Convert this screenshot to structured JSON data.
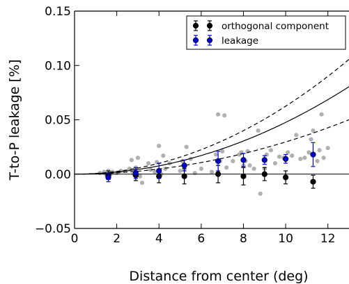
{
  "chart_data": {
    "type": "scatter",
    "xlabel": "Distance from center (deg)",
    "ylabel": "T-to-P leakage [%]",
    "xlim": [
      0,
      13
    ],
    "ylim": [
      -0.05,
      0.15
    ],
    "xticks": [
      0,
      2,
      4,
      6,
      8,
      10,
      12
    ],
    "yticks": [
      -0.05,
      0.0,
      0.05,
      0.1,
      0.15
    ],
    "xtick_labels": [
      "0",
      "2",
      "4",
      "6",
      "8",
      "10",
      "12"
    ],
    "ytick_labels": [
      "−0.05",
      "0.00",
      "0.05",
      "0.10",
      "0.15"
    ],
    "legend": {
      "placement": "top-right"
    },
    "series": [
      {
        "name": "orthogonal component",
        "color": "#000000",
        "x": [
          1.6,
          2.9,
          4.0,
          5.2,
          6.8,
          8.0,
          9.0,
          10.0,
          11.3
        ],
        "y": [
          -0.001,
          -0.001,
          -0.002,
          -0.002,
          0.0,
          -0.002,
          0.0,
          -0.003,
          -0.007
        ],
        "yerr": [
          0.004,
          0.005,
          0.006,
          0.007,
          0.008,
          0.008,
          0.006,
          0.006,
          0.006
        ]
      },
      {
        "name": "leakage",
        "color": "#0000cc",
        "x": [
          1.6,
          2.9,
          4.0,
          5.2,
          6.8,
          8.0,
          9.0,
          10.0,
          11.3
        ],
        "y": [
          -0.003,
          0.001,
          0.003,
          0.008,
          0.012,
          0.013,
          0.013,
          0.014,
          0.018
        ],
        "yerr": [
          0.004,
          0.005,
          0.007,
          0.005,
          0.009,
          0.006,
          0.004,
          0.004,
          0.011
        ]
      }
    ],
    "scatter_points": {
      "color": "#b0b0b0",
      "x": [
        1.2,
        1.4,
        1.5,
        1.6,
        1.7,
        1.8,
        2.0,
        2.2,
        2.6,
        2.7,
        2.8,
        2.9,
        3.0,
        3.1,
        3.2,
        3.5,
        3.6,
        3.8,
        3.9,
        4.0,
        4.1,
        4.2,
        4.3,
        4.5,
        5.0,
        5.1,
        5.2,
        5.3,
        5.5,
        5.7,
        6.0,
        6.5,
        6.7,
        6.8,
        6.9,
        7.0,
        7.1,
        7.2,
        7.5,
        7.8,
        7.9,
        8.0,
        8.1,
        8.2,
        8.3,
        8.5,
        8.7,
        8.8,
        9.0,
        9.1,
        9.3,
        9.5,
        9.7,
        9.9,
        10.0,
        10.1,
        10.3,
        10.5,
        10.7,
        10.9,
        11.1,
        11.2,
        11.3,
        11.5,
        11.6,
        11.7,
        11.8,
        12.0
      ],
      "y": [
        0.001,
        0.002,
        -0.001,
        0.003,
        0.0,
        0.002,
        0.001,
        0.003,
        0.005,
        0.013,
        0.0,
        0.006,
        0.015,
        -0.002,
        -0.008,
        0.01,
        0.004,
        0.002,
        0.011,
        0.026,
        0.0,
        0.017,
        0.005,
        0.01,
        0.003,
        0.012,
        0.005,
        0.025,
        0.014,
        0.001,
        0.005,
        0.002,
        0.018,
        0.055,
        0.012,
        0.021,
        0.054,
        0.006,
        0.012,
        0.018,
        0.02,
        0.008,
        0.012,
        0.021,
        0.008,
        0.005,
        0.04,
        -0.018,
        0.005,
        0.018,
        0.022,
        0.01,
        0.016,
        0.015,
        0.013,
        0.02,
        0.017,
        0.036,
        0.014,
        0.015,
        0.02,
        0.032,
        0.04,
        0.012,
        0.022,
        0.055,
        0.015,
        0.024
      ]
    },
    "model_curves": [
      {
        "style": "solid",
        "form": "a*x^2",
        "a": 0.000476
      },
      {
        "style": "dashed",
        "form": "a*x^2",
        "a": 0.000625
      },
      {
        "style": "dashed",
        "form": "a*x^2",
        "a": 0.000296
      }
    ]
  }
}
